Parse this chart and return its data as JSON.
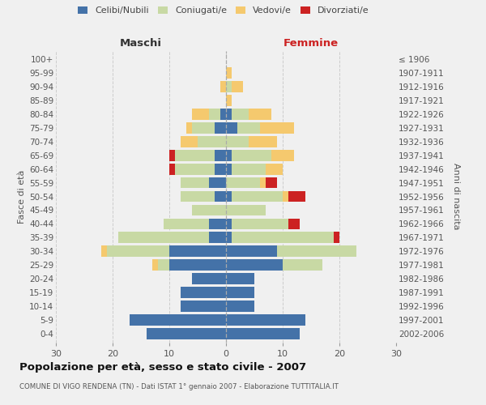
{
  "age_groups": [
    "0-4",
    "5-9",
    "10-14",
    "15-19",
    "20-24",
    "25-29",
    "30-34",
    "35-39",
    "40-44",
    "45-49",
    "50-54",
    "55-59",
    "60-64",
    "65-69",
    "70-74",
    "75-79",
    "80-84",
    "85-89",
    "90-94",
    "95-99",
    "100+"
  ],
  "birth_years": [
    "2002-2006",
    "1997-2001",
    "1992-1996",
    "1987-1991",
    "1982-1986",
    "1977-1981",
    "1972-1976",
    "1967-1971",
    "1962-1966",
    "1957-1961",
    "1952-1956",
    "1947-1951",
    "1942-1946",
    "1937-1941",
    "1932-1936",
    "1927-1931",
    "1922-1926",
    "1917-1921",
    "1912-1916",
    "1907-1911",
    "≤ 1906"
  ],
  "colors": {
    "celibe": "#4472a8",
    "coniugato": "#c8d9a4",
    "vedovo": "#f5c96e",
    "divorziato": "#cc2222"
  },
  "male": {
    "celibe": [
      14,
      17,
      8,
      8,
      6,
      10,
      10,
      3,
      3,
      0,
      2,
      3,
      2,
      2,
      0,
      2,
      1,
      0,
      0,
      0,
      0
    ],
    "coniugato": [
      0,
      0,
      0,
      0,
      0,
      2,
      11,
      16,
      8,
      6,
      6,
      5,
      7,
      7,
      5,
      4,
      2,
      0,
      0,
      0,
      0
    ],
    "vedovo": [
      0,
      0,
      0,
      0,
      0,
      1,
      1,
      0,
      0,
      0,
      0,
      0,
      0,
      0,
      3,
      1,
      3,
      0,
      1,
      0,
      0
    ],
    "divorziato": [
      0,
      0,
      0,
      0,
      0,
      0,
      0,
      0,
      0,
      0,
      0,
      0,
      1,
      1,
      0,
      0,
      0,
      0,
      0,
      0,
      0
    ]
  },
  "female": {
    "nubile": [
      13,
      14,
      5,
      5,
      5,
      10,
      9,
      1,
      1,
      0,
      1,
      0,
      1,
      1,
      0,
      2,
      1,
      0,
      0,
      0,
      0
    ],
    "coniugata": [
      0,
      0,
      0,
      0,
      0,
      7,
      14,
      18,
      10,
      7,
      9,
      6,
      6,
      7,
      4,
      4,
      3,
      0,
      1,
      0,
      0
    ],
    "vedova": [
      0,
      0,
      0,
      0,
      0,
      0,
      0,
      0,
      0,
      0,
      1,
      1,
      3,
      4,
      5,
      6,
      4,
      1,
      2,
      1,
      0
    ],
    "divorziata": [
      0,
      0,
      0,
      0,
      0,
      0,
      0,
      1,
      2,
      0,
      3,
      2,
      0,
      0,
      0,
      0,
      0,
      0,
      0,
      0,
      0
    ]
  },
  "xlim": 30,
  "title": "Popolazione per età, sesso e stato civile - 2007",
  "subtitle": "COMUNE DI VIGO RENDENA (TN) - Dati ISTAT 1° gennaio 2007 - Elaborazione TUTTITALIA.IT",
  "xlabel_left": "Maschi",
  "xlabel_right": "Femmine",
  "ylabel_left": "Fasce di età",
  "ylabel_right": "Anni di nascita",
  "bg_color": "#f0f0f0",
  "grid_color": "#cccccc"
}
